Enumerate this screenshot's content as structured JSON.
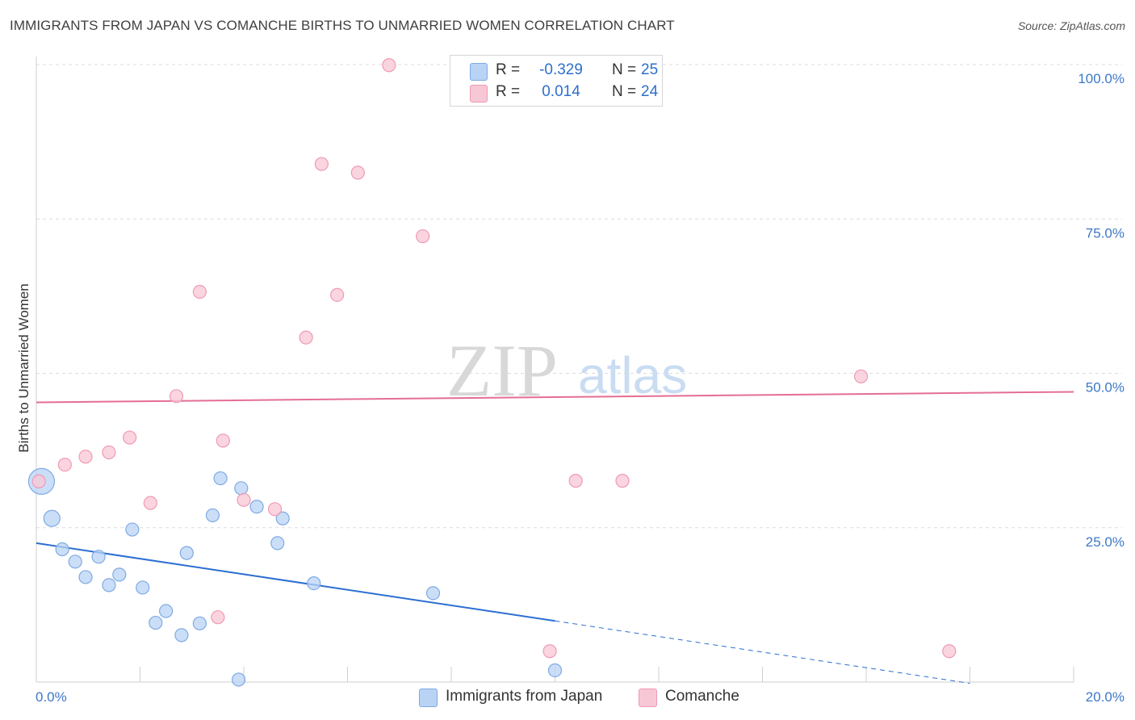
{
  "title": "IMMIGRANTS FROM JAPAN VS COMANCHE BIRTHS TO UNMARRIED WOMEN CORRELATION CHART",
  "source": "Source: ZipAtlas.com",
  "watermark": {
    "zip": "ZIP",
    "atlas": "atlas"
  },
  "colors": {
    "japan_fill": "#b9d3f5",
    "japan_stroke": "#7eaae2",
    "japan_line": "#2b6fcf",
    "comanche_fill": "#f8c7d6",
    "comanche_stroke": "#ef9ab4",
    "comanche_line": "#e56e93",
    "grid": "#dcdcdc",
    "tick_text": "#3d78c8"
  },
  "legend_top": {
    "rows": [
      {
        "series": "japan",
        "r_label": "R =",
        "r_value": "-0.329",
        "n_label": "N =",
        "n_value": "25"
      },
      {
        "series": "comanche",
        "r_label": "R =",
        "r_value": "0.014",
        "n_label": "N =",
        "n_value": "24"
      }
    ]
  },
  "legend_bottom": [
    {
      "series": "japan",
      "label": "Immigrants from Japan"
    },
    {
      "series": "comanche",
      "label": "Comanche"
    }
  ],
  "chart_data": {
    "type": "scatter",
    "title": "IMMIGRANTS FROM JAPAN VS COMANCHE BIRTHS TO UNMARRIED WOMEN CORRELATION CHART",
    "xlabel": "",
    "ylabel": "Births to Unmarried Women",
    "xlim": [
      0,
      20
    ],
    "ylim": [
      0,
      102
    ],
    "x_tick_labels": [
      "0.0%",
      "20.0%"
    ],
    "y_ticks": [
      25,
      50,
      75,
      100
    ],
    "y_tick_labels": [
      "25.0%",
      "50.0%",
      "75.0%",
      "100.0%"
    ],
    "grid": true,
    "legend_position": "top-center",
    "series": [
      {
        "name": "Immigrants from Japan",
        "key": "japan",
        "points": [
          {
            "x": 0.1,
            "y": 32.5,
            "size": "large"
          },
          {
            "x": 0.3,
            "y": 26.5
          },
          {
            "x": 0.5,
            "y": 21.5
          },
          {
            "x": 0.75,
            "y": 19.5
          },
          {
            "x": 0.95,
            "y": 17.0
          },
          {
            "x": 1.2,
            "y": 20.3
          },
          {
            "x": 1.4,
            "y": 15.7
          },
          {
            "x": 1.6,
            "y": 17.4
          },
          {
            "x": 1.85,
            "y": 24.7
          },
          {
            "x": 2.05,
            "y": 15.3
          },
          {
            "x": 2.3,
            "y": 9.6
          },
          {
            "x": 2.5,
            "y": 11.5
          },
          {
            "x": 2.8,
            "y": 7.6
          },
          {
            "x": 2.9,
            "y": 20.9
          },
          {
            "x": 3.15,
            "y": 9.5
          },
          {
            "x": 3.4,
            "y": 27.0
          },
          {
            "x": 3.55,
            "y": 33.0
          },
          {
            "x": 3.9,
            "y": 0.4
          },
          {
            "x": 3.95,
            "y": 31.4
          },
          {
            "x": 4.25,
            "y": 28.4
          },
          {
            "x": 4.65,
            "y": 22.5
          },
          {
            "x": 4.75,
            "y": 26.5
          },
          {
            "x": 5.35,
            "y": 16.0
          },
          {
            "x": 7.65,
            "y": 14.4
          },
          {
            "x": 10.0,
            "y": 1.9
          }
        ],
        "trend": {
          "x1": 0,
          "y1": 22.5,
          "x2": 10.0,
          "y2": 9.9,
          "dashed_to_x": 18.0,
          "dashed_to_y": -0.2
        }
      },
      {
        "name": "Comanche",
        "key": "comanche",
        "points": [
          {
            "x": 0.05,
            "y": 32.5
          },
          {
            "x": 0.55,
            "y": 35.2
          },
          {
            "x": 0.95,
            "y": 36.5
          },
          {
            "x": 1.4,
            "y": 37.2
          },
          {
            "x": 1.8,
            "y": 39.6
          },
          {
            "x": 2.2,
            "y": 29.0
          },
          {
            "x": 2.7,
            "y": 46.3
          },
          {
            "x": 3.15,
            "y": 63.2
          },
          {
            "x": 3.5,
            "y": 10.5
          },
          {
            "x": 3.6,
            "y": 39.1
          },
          {
            "x": 4.0,
            "y": 29.5
          },
          {
            "x": 4.6,
            "y": 28.0
          },
          {
            "x": 5.2,
            "y": 55.8
          },
          {
            "x": 5.5,
            "y": 83.9
          },
          {
            "x": 5.8,
            "y": 62.7
          },
          {
            "x": 6.2,
            "y": 82.5
          },
          {
            "x": 6.8,
            "y": 99.9
          },
          {
            "x": 7.45,
            "y": 72.2
          },
          {
            "x": 9.9,
            "y": 5.0
          },
          {
            "x": 10.4,
            "y": 32.6
          },
          {
            "x": 10.95,
            "y": 99.7
          },
          {
            "x": 11.3,
            "y": 32.6
          },
          {
            "x": 15.9,
            "y": 49.5
          },
          {
            "x": 17.6,
            "y": 5.0
          }
        ],
        "trend": {
          "x1": 0,
          "y1": 45.3,
          "x2": 20,
          "y2": 47.0
        }
      }
    ]
  }
}
